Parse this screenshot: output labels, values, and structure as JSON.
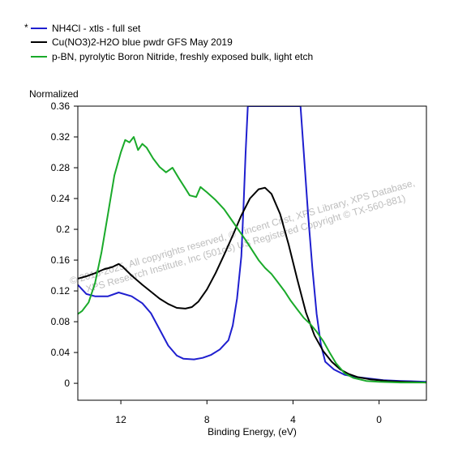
{
  "legend": {
    "marker": "*",
    "entries": [
      {
        "label": "NH4Cl - xtls - full set",
        "color": "#1f1fcf"
      },
      {
        "label": "Cu(NO3)2-H2O blue pwdr GFS May 2019",
        "color": "#000000"
      },
      {
        "label": "p-BN, pyrolytic Boron Nitride, freshly exposed bulk, light etch",
        "color": "#1aaa2a"
      }
    ]
  },
  "watermark": {
    "line1": "© 2016-2025, All copyrights reserved,  © Vincent Crist, XPS Library, XPS Database,",
    "line2": "XPS Research Institute, Inc (501c3)  US Registered Copyright © TX-560-881)"
  },
  "chart_data": {
    "type": "line",
    "title": "",
    "ylabel": "Normalized",
    "xlabel": "Binding Energy, (eV)",
    "x_reversed": true,
    "xlim": [
      14.0,
      -2.2
    ],
    "ylim": [
      -0.022,
      0.36
    ],
    "x_ticks": [
      12,
      8,
      4,
      0
    ],
    "y_ticks": [
      0,
      0.04,
      0.08,
      0.12,
      0.16,
      0.2,
      0.24,
      0.28,
      0.32,
      0.36
    ],
    "y_tick_labels": [
      "0",
      "0.04",
      "0.08",
      "0.12",
      "0.16",
      "0.2",
      "0.24",
      "0.28",
      "0.32",
      "0.36"
    ],
    "series": [
      {
        "name": "NH4Cl - xtls - full set",
        "color": "#1f1fcf",
        "points": [
          [
            14.0,
            0.128
          ],
          [
            13.6,
            0.116
          ],
          [
            13.2,
            0.113
          ],
          [
            12.6,
            0.113
          ],
          [
            12.1,
            0.118
          ],
          [
            11.5,
            0.113
          ],
          [
            11.0,
            0.104
          ],
          [
            10.6,
            0.091
          ],
          [
            10.2,
            0.07
          ],
          [
            9.8,
            0.049
          ],
          [
            9.4,
            0.036
          ],
          [
            9.1,
            0.032
          ],
          [
            8.6,
            0.031
          ],
          [
            8.2,
            0.033
          ],
          [
            7.8,
            0.037
          ],
          [
            7.4,
            0.044
          ],
          [
            7.0,
            0.056
          ],
          [
            6.8,
            0.075
          ],
          [
            6.6,
            0.11
          ],
          [
            6.4,
            0.165
          ],
          [
            6.3,
            0.23
          ],
          [
            6.2,
            0.3
          ],
          [
            6.1,
            0.36
          ],
          [
            5.9,
            0.36
          ],
          [
            5.0,
            0.36
          ],
          [
            4.0,
            0.36
          ],
          [
            3.65,
            0.36
          ],
          [
            3.5,
            0.3
          ],
          [
            3.3,
            0.22
          ],
          [
            3.1,
            0.15
          ],
          [
            2.9,
            0.09
          ],
          [
            2.7,
            0.05
          ],
          [
            2.5,
            0.028
          ],
          [
            2.1,
            0.018
          ],
          [
            1.6,
            0.011
          ],
          [
            1.0,
            0.008
          ],
          [
            0.4,
            0.006
          ],
          [
            -0.2,
            0.004
          ],
          [
            -1.0,
            0.003
          ],
          [
            -2.2,
            0.002
          ]
        ]
      },
      {
        "name": "Cu(NO3)2-H2O blue pwdr GFS May 2019",
        "color": "#000000",
        "points": [
          [
            14.0,
            0.136
          ],
          [
            13.6,
            0.139
          ],
          [
            13.2,
            0.143
          ],
          [
            12.8,
            0.148
          ],
          [
            12.4,
            0.151
          ],
          [
            12.1,
            0.155
          ],
          [
            11.9,
            0.151
          ],
          [
            11.5,
            0.14
          ],
          [
            11.0,
            0.128
          ],
          [
            10.6,
            0.119
          ],
          [
            10.2,
            0.11
          ],
          [
            9.8,
            0.103
          ],
          [
            9.4,
            0.098
          ],
          [
            9.0,
            0.097
          ],
          [
            8.7,
            0.099
          ],
          [
            8.4,
            0.106
          ],
          [
            8.0,
            0.122
          ],
          [
            7.6,
            0.143
          ],
          [
            7.2,
            0.167
          ],
          [
            6.8,
            0.192
          ],
          [
            6.4,
            0.218
          ],
          [
            6.0,
            0.24
          ],
          [
            5.6,
            0.252
          ],
          [
            5.3,
            0.254
          ],
          [
            5.0,
            0.246
          ],
          [
            4.6,
            0.22
          ],
          [
            4.2,
            0.18
          ],
          [
            3.8,
            0.135
          ],
          [
            3.4,
            0.092
          ],
          [
            3.0,
            0.062
          ],
          [
            2.6,
            0.042
          ],
          [
            2.2,
            0.028
          ],
          [
            1.8,
            0.018
          ],
          [
            1.4,
            0.012
          ],
          [
            1.0,
            0.008
          ],
          [
            0.4,
            0.005
          ],
          [
            -0.4,
            0.003
          ],
          [
            -1.2,
            0.002
          ],
          [
            -2.2,
            0.001
          ]
        ]
      },
      {
        "name": "p-BN, pyrolytic Boron Nitride, freshly exposed bulk, light etch",
        "color": "#1aaa2a",
        "points": [
          [
            14.0,
            0.09
          ],
          [
            13.8,
            0.094
          ],
          [
            13.5,
            0.105
          ],
          [
            13.2,
            0.13
          ],
          [
            12.9,
            0.17
          ],
          [
            12.6,
            0.22
          ],
          [
            12.3,
            0.27
          ],
          [
            12.0,
            0.3
          ],
          [
            11.8,
            0.316
          ],
          [
            11.6,
            0.313
          ],
          [
            11.4,
            0.32
          ],
          [
            11.2,
            0.303
          ],
          [
            11.0,
            0.311
          ],
          [
            10.8,
            0.306
          ],
          [
            10.5,
            0.292
          ],
          [
            10.2,
            0.281
          ],
          [
            9.9,
            0.274
          ],
          [
            9.6,
            0.28
          ],
          [
            9.3,
            0.266
          ],
          [
            9.0,
            0.253
          ],
          [
            8.8,
            0.244
          ],
          [
            8.5,
            0.242
          ],
          [
            8.3,
            0.255
          ],
          [
            8.0,
            0.248
          ],
          [
            7.6,
            0.238
          ],
          [
            7.2,
            0.226
          ],
          [
            6.8,
            0.21
          ],
          [
            6.5,
            0.198
          ],
          [
            6.2,
            0.186
          ],
          [
            5.9,
            0.173
          ],
          [
            5.6,
            0.16
          ],
          [
            5.3,
            0.15
          ],
          [
            5.0,
            0.142
          ],
          [
            4.7,
            0.131
          ],
          [
            4.4,
            0.12
          ],
          [
            4.1,
            0.107
          ],
          [
            3.8,
            0.096
          ],
          [
            3.5,
            0.085
          ],
          [
            3.2,
            0.077
          ],
          [
            2.9,
            0.067
          ],
          [
            2.6,
            0.055
          ],
          [
            2.3,
            0.04
          ],
          [
            2.0,
            0.026
          ],
          [
            1.6,
            0.013
          ],
          [
            1.2,
            0.007
          ],
          [
            0.6,
            0.003
          ],
          [
            0.0,
            0.002
          ],
          [
            -1.0,
            0.001
          ],
          [
            -2.2,
            0.001
          ]
        ]
      }
    ]
  }
}
